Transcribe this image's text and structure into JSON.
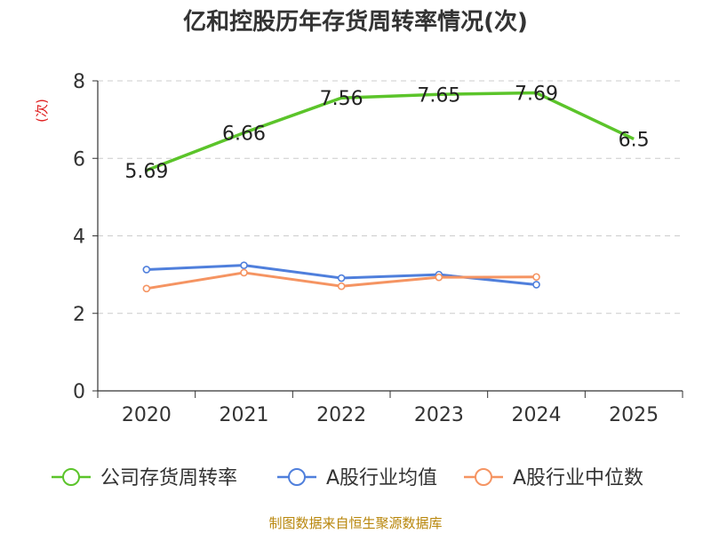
{
  "chart_data": {
    "type": "line",
    "title": "亿和控股历年存货周转率情况(次)",
    "ylabel": "(次)",
    "xlabel": "",
    "ylim": [
      0,
      8
    ],
    "yticks": [
      0,
      2,
      4,
      6,
      8
    ],
    "categories": [
      "2020",
      "2021",
      "2022",
      "2023",
      "2024",
      "2025"
    ],
    "grid": true,
    "legend_position": "bottom",
    "series": [
      {
        "name": "公司存货周转率",
        "color": "#5bc42a",
        "values": [
          5.69,
          6.66,
          7.56,
          7.65,
          7.69,
          6.5
        ],
        "labels": [
          "5.69",
          "6.66",
          "7.56",
          "7.65",
          "7.69",
          "6.5"
        ]
      },
      {
        "name": "A股行业均值",
        "color": "#4f7fdc",
        "values": [
          3.13,
          3.24,
          2.91,
          3.0,
          2.74,
          null
        ]
      },
      {
        "name": "A股行业中位数",
        "color": "#f59462",
        "values": [
          2.64,
          3.05,
          2.7,
          2.93,
          2.94,
          null
        ]
      }
    ]
  },
  "source": "制图数据来自恒生聚源数据库"
}
